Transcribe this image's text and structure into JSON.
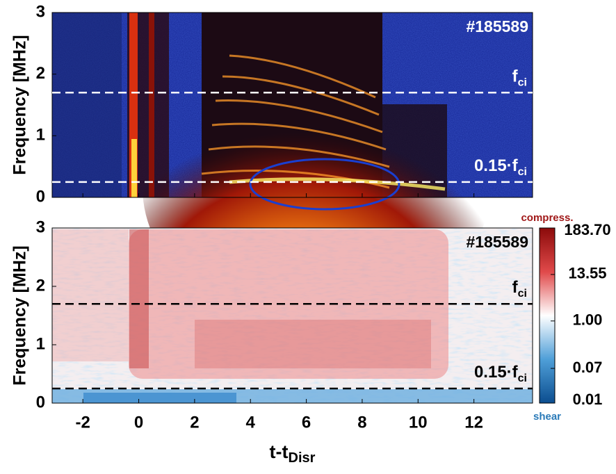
{
  "chart_data": [
    {
      "type": "heatmap",
      "ylabel": "Frequency [MHz]",
      "xlim": [
        -3.1,
        14.1
      ],
      "ylim": [
        0,
        3
      ],
      "xticks": [
        -2,
        0,
        2,
        4,
        6,
        8,
        10,
        12
      ],
      "yticks": [
        0,
        1,
        2,
        3
      ],
      "annotation": "#185589",
      "hlines": [
        {
          "value": 1.7,
          "label": "f",
          "label_sub": "ci",
          "color": "#ffffff"
        },
        {
          "value": 0.25,
          "label": "0.15·f",
          "label_sub": "ci",
          "color": "#ffffff"
        }
      ]
    },
    {
      "type": "heatmap",
      "ylabel": "Frequency [MHz]",
      "xlabel": "t-t",
      "xlabel_sub": "Disr",
      "xlim": [
        -3.1,
        14.1
      ],
      "ylim": [
        0,
        3
      ],
      "xticks": [
        -2,
        0,
        2,
        4,
        6,
        8,
        10,
        12
      ],
      "yticks": [
        0,
        1,
        2,
        3
      ],
      "annotation": "#185589",
      "hlines": [
        {
          "value": 1.7,
          "label": "f",
          "label_sub": "ci",
          "color": "#000000"
        },
        {
          "value": 0.25,
          "label": "0.15·f",
          "label_sub": "ci",
          "color": "#000000"
        }
      ],
      "colorbar": {
        "scale": "log",
        "clim": [
          0.01,
          183.7
        ],
        "ticks": [
          {
            "value": 183.7,
            "label": "183.70"
          },
          13.55,
          {
            "value": 1,
            "label": "1.00"
          },
          0.07,
          0.01
        ],
        "top_label": "compress.",
        "bottom_label": "shear"
      }
    }
  ]
}
